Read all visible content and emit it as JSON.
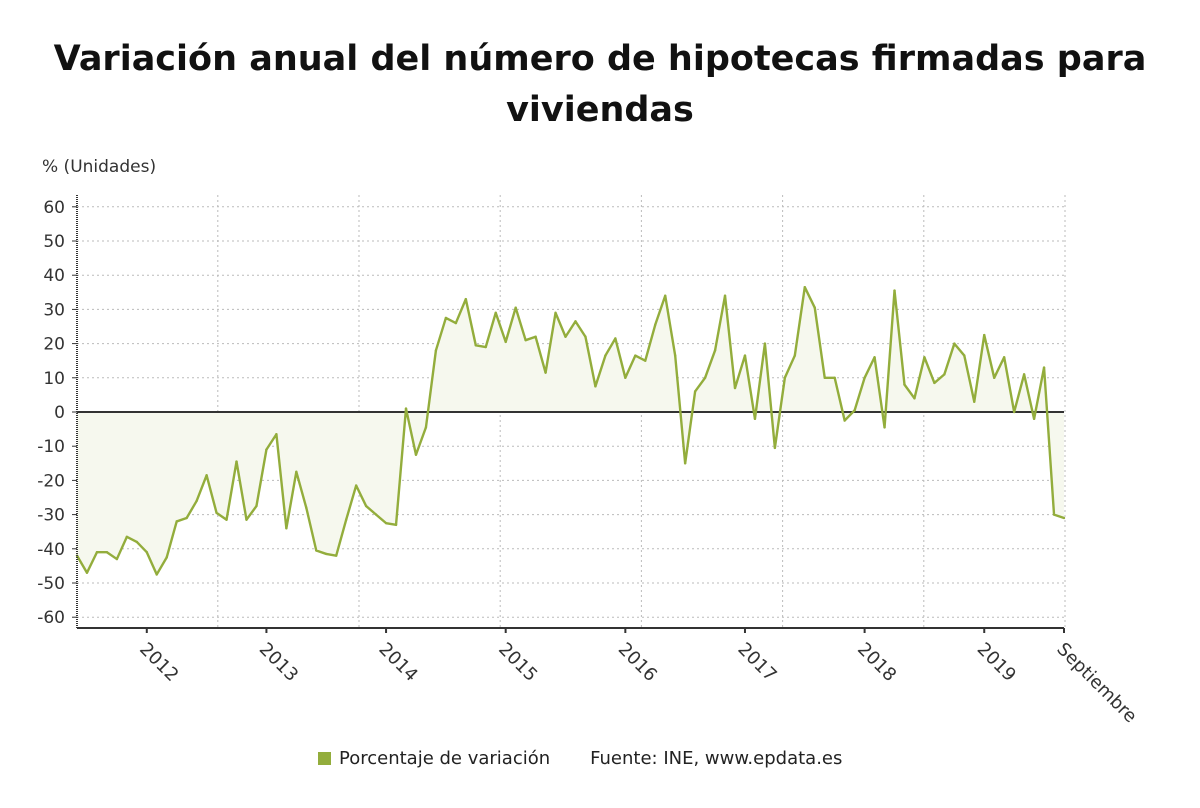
{
  "chart_data": {
    "type": "area",
    "title": "Variación anual del número de hipotecas firmadas para viviendas",
    "ylabel": "% (Unidades)",
    "ylim": [
      -63,
      63
    ],
    "yticks": [
      60,
      50,
      40,
      30,
      20,
      10,
      0,
      -10,
      -20,
      -30,
      -40,
      -50,
      -60
    ],
    "xtick_labels": [
      {
        "label": "2012",
        "index": 7
      },
      {
        "label": "2013",
        "index": 19
      },
      {
        "label": "2014",
        "index": 31
      },
      {
        "label": "2015",
        "index": 43
      },
      {
        "label": "2016",
        "index": 55
      },
      {
        "label": "2017",
        "index": 67
      },
      {
        "label": "2018",
        "index": 79
      },
      {
        "label": "2019",
        "index": 91
      },
      {
        "label": "Septiembre",
        "index": 99
      }
    ],
    "grid": true,
    "legend_position": "bottom",
    "series": [
      {
        "name": "Porcentaje de variación",
        "color": "#93ad3c",
        "values": [
          -42,
          -47,
          -41,
          -41,
          -43,
          -36.5,
          -38,
          -41,
          -47.5,
          -42.5,
          -32,
          -31,
          -26,
          -18.5,
          -29.5,
          -31.5,
          -14.5,
          -31.5,
          -27.5,
          -11,
          -6.5,
          -34,
          -17.5,
          -28,
          -40.5,
          -41.5,
          -42,
          -31.5,
          -21.5,
          -27.5,
          -30,
          -32.5,
          -33,
          1,
          -12.5,
          -4.5,
          18,
          27.5,
          26,
          33,
          19.5,
          19,
          29,
          20.5,
          30.5,
          21,
          22,
          11.5,
          29,
          22,
          26.5,
          22,
          7.5,
          16.5,
          21.5,
          10,
          16.5,
          15,
          25.5,
          34,
          16.5,
          -15,
          6,
          10,
          18,
          34,
          7,
          16.5,
          -2,
          20,
          -10.5,
          10,
          16.5,
          36.5,
          30.5,
          10,
          10,
          -2.5,
          0.5,
          10,
          16,
          -4.5,
          35.5,
          8,
          4,
          16,
          8.5,
          11,
          20,
          16.5,
          3,
          22.5,
          10,
          16,
          0,
          11,
          -2,
          13,
          -30,
          -31
        ]
      }
    ],
    "source": "Fuente: INE, www.epdata.es"
  }
}
